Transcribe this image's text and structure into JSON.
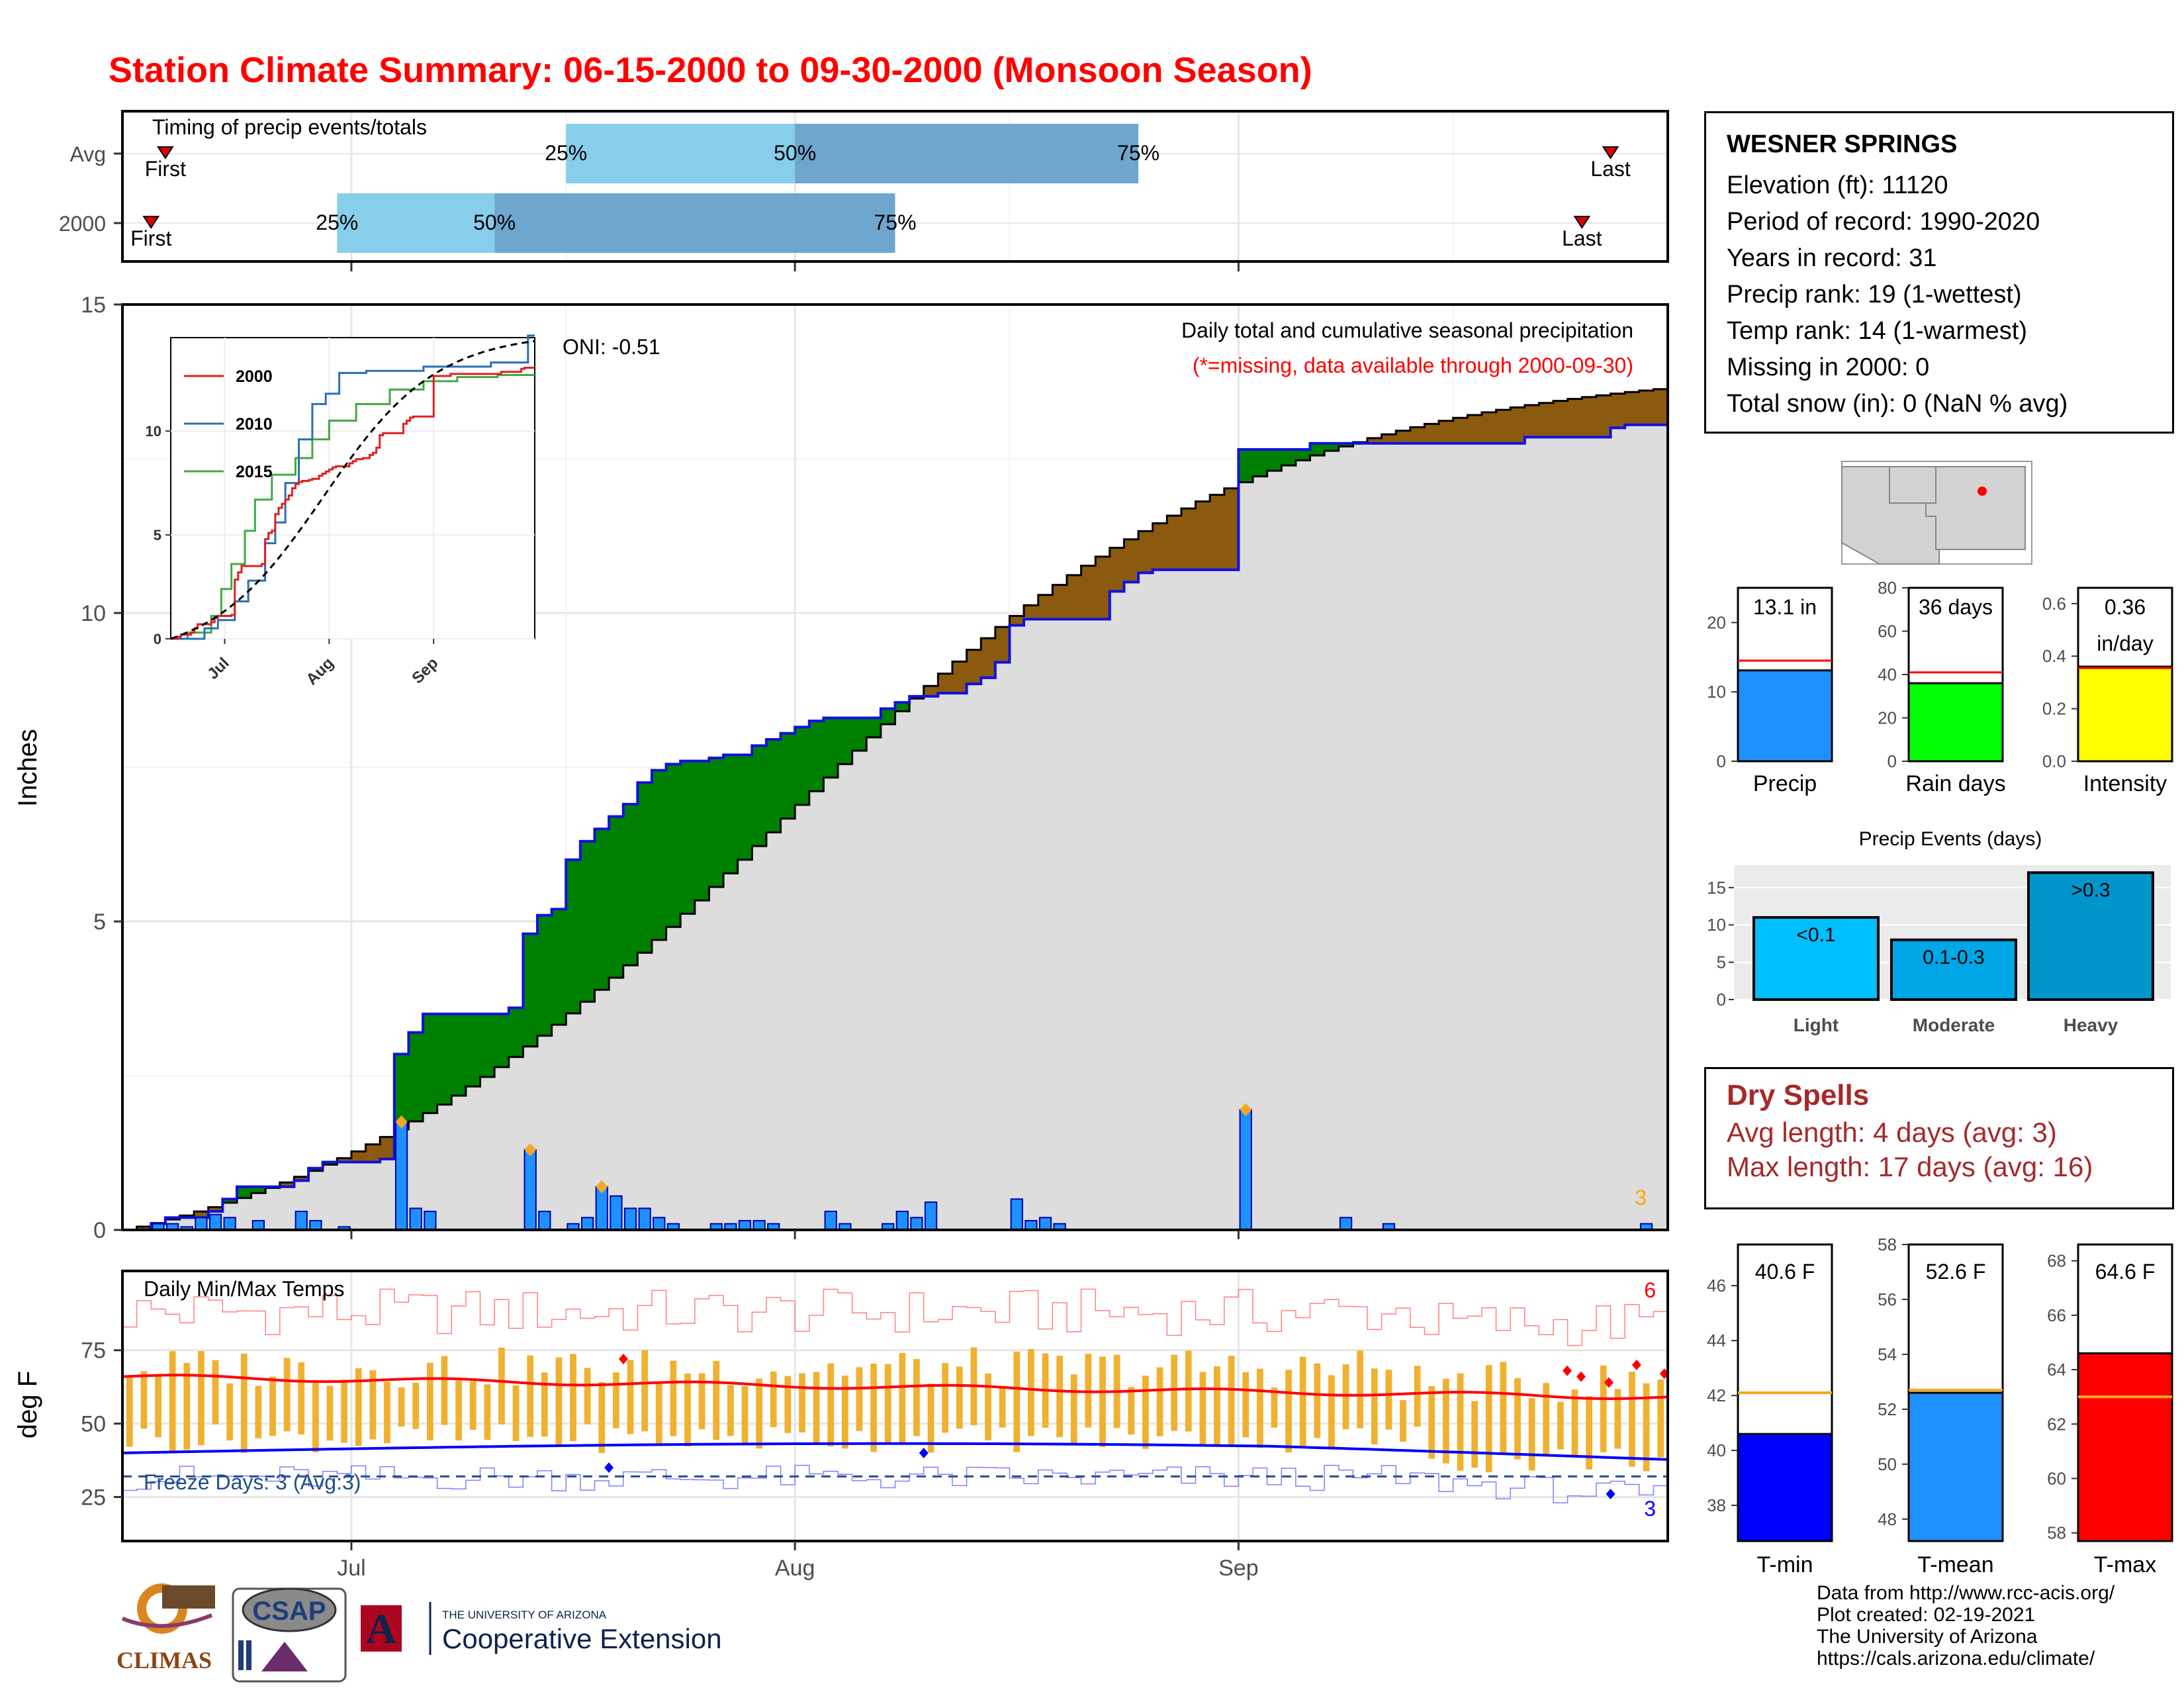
{
  "title": "Station Climate Summary: 06-15-2000 to 09-30-2000 (Monsoon Season)",
  "colors": {
    "title": "#ff0000",
    "excess_precip": "#008000",
    "normal_precip": "#dddddd",
    "daily_bar": "#1e90ff",
    "pct_light": "#87ceeb",
    "pct_dark": "#6ea6cd",
    "tmax": "#ff0000",
    "tmin": "#0000ff",
    "daily_range": "#f0b030",
    "dry_spells": "#a52a2a",
    "intensity": "#ffff00",
    "rain_days": "#00ff00"
  },
  "timing_panel": {
    "label": "Timing of precip events/totals",
    "rows": [
      {
        "name": "Avg",
        "first_date": "2000-06-18",
        "last_date": "2000-09-27",
        "p25": "2000-07-16",
        "p50": "2000-08-01",
        "p75": "2000-08-25",
        "first_label": "First",
        "last_label": "Last"
      },
      {
        "name": "2000",
        "first_date": "2000-06-17",
        "last_date": "2000-09-25",
        "p25": "2000-06-30",
        "p50": "2000-07-11",
        "p75": "2000-08-08",
        "first_label": "First",
        "last_label": "Last"
      }
    ],
    "pct_labels": [
      "25%",
      "50%",
      "75%"
    ]
  },
  "precip_panel": {
    "ylabel": "Inches",
    "ylim": [
      0,
      15
    ],
    "yticks": [
      "0",
      "5",
      "10",
      "15"
    ],
    "caption": "Daily total and cumulative seasonal precipitation",
    "caption2": "(*=missing, data available through 2000-09-30)",
    "oni": "ONI: -0.51",
    "count_label": "3"
  },
  "inset": {
    "yticks": [
      "0",
      "5",
      "10"
    ],
    "xticks": [
      "Jul",
      "Aug",
      "Sep"
    ],
    "legend": [
      "2000",
      "2010",
      "2015"
    ]
  },
  "temp_panel": {
    "ylabel": "deg F",
    "label": "Daily Min/Max Temps",
    "yticks": [
      "25",
      "50",
      "75"
    ],
    "freeze": "Freeze Days: 3 (Avg:3)",
    "hot_count": "6",
    "cold_count": "3",
    "freeze_line": 32
  },
  "x_axis": {
    "ticks": [
      "Jul",
      "Aug",
      "Sep"
    ]
  },
  "station": {
    "name": "WESNER SPRINGS",
    "lines": [
      "Elevation (ft): 11120",
      "Period of record: 1990-2020",
      "Years in record: 31",
      "Precip rank: 19 (1-wettest)",
      "Temp rank: 14 (1-warmest)",
      "Missing in 2000: 0",
      "Total snow (in): 0 (NaN % avg)"
    ]
  },
  "summary_bars": [
    {
      "label": "Precip",
      "value": 13.1,
      "avg": 14.5,
      "text": "13.1 in",
      "yticks": [
        "0",
        "10",
        "20"
      ],
      "ylim": [
        0,
        25
      ]
    },
    {
      "label": "Rain days",
      "value": 36,
      "avg": 41,
      "text": "36 days",
      "yticks": [
        "0",
        "20",
        "40",
        "60",
        "80"
      ],
      "ylim": [
        0,
        80
      ]
    },
    {
      "label": "Intensity",
      "value": 0.36,
      "avg": 0.355,
      "text": "0.36",
      "text2": "in/day",
      "yticks": [
        "0.0",
        "0.2",
        "0.4",
        "0.6"
      ],
      "ylim": [
        0,
        0.66
      ]
    }
  ],
  "events_chart": {
    "title": "Precip Events (days)",
    "categories": [
      "Light",
      "Moderate",
      "Heavy"
    ],
    "bar_labels": [
      "<0.1",
      "0.1-0.3",
      ">0.3"
    ],
    "values": [
      11,
      8,
      17
    ],
    "yticks": [
      "0",
      "5",
      "10",
      "15"
    ],
    "ylim": [
      0,
      18
    ]
  },
  "dry_spells": {
    "title": "Dry Spells",
    "avg": "Avg length: 4 days (avg: 3)",
    "max": "Max length: 17 days (avg: 16)"
  },
  "temp_bars": [
    {
      "label": "T-min",
      "value": 40.6,
      "avg": 42.1,
      "text": "40.6 F",
      "yticks": [
        "38",
        "40",
        "42",
        "44",
        "46"
      ],
      "ylim": [
        36.7,
        47.5
      ]
    },
    {
      "label": "T-mean",
      "value": 52.6,
      "avg": 52.7,
      "text": "52.6 F",
      "yticks": [
        "48",
        "50",
        "52",
        "54",
        "56",
        "58"
      ],
      "ylim": [
        47.2,
        58.0
      ]
    },
    {
      "label": "T-max",
      "value": 64.6,
      "avg": 63.0,
      "text": "64.6 F",
      "yticks": [
        "58",
        "60",
        "62",
        "64",
        "66",
        "68"
      ],
      "ylim": [
        57.7,
        68.6
      ]
    }
  ],
  "footer": [
    "Data from http://www.rcc-acis.org/",
    "Plot created: 02-19-2021",
    "The University of Arizona",
    "https://cals.arizona.edu/climate/"
  ],
  "logos": {
    "climas": "CLIMAS",
    "csap": "CSAP",
    "ua_small": "THE UNIVERSITY OF ARIZONA",
    "ua_big": "Cooperative Extension",
    "ua_letter": "A"
  },
  "chart_data": [
    {
      "type": "area",
      "title": "Daily total and cumulative seasonal precipitation",
      "ylabel": "Inches",
      "ylim": [
        0,
        15
      ],
      "start_date": "2000-06-15",
      "end_date": "2000-09-30",
      "cumulative_2000": [
        [
          "06-15",
          0
        ],
        [
          "06-17",
          0.1
        ],
        [
          "06-18",
          0.2
        ],
        [
          "06-21",
          0.3
        ],
        [
          "06-22",
          0.5
        ],
        [
          "06-23",
          0.7
        ],
        [
          "06-27",
          0.8
        ],
        [
          "06-28",
          1.0
        ],
        [
          "06-29",
          1.1
        ],
        [
          "07-03",
          1.15
        ],
        [
          "07-04",
          2.85
        ],
        [
          "07-05",
          3.2
        ],
        [
          "07-06",
          3.5
        ],
        [
          "07-12",
          3.6
        ],
        [
          "07-13",
          4.8
        ],
        [
          "07-14",
          5.1
        ],
        [
          "07-15",
          5.2
        ],
        [
          "07-16",
          6.0
        ],
        [
          "07-17",
          6.3
        ],
        [
          "07-18",
          6.5
        ],
        [
          "07-19",
          6.7
        ],
        [
          "07-20",
          6.9
        ],
        [
          "07-21",
          7.25
        ],
        [
          "07-22",
          7.45
        ],
        [
          "07-23",
          7.55
        ],
        [
          "07-24",
          7.6
        ],
        [
          "07-26",
          7.65
        ],
        [
          "07-27",
          7.7
        ],
        [
          "07-29",
          7.85
        ],
        [
          "07-30",
          7.95
        ],
        [
          "07-31",
          8.05
        ],
        [
          "08-01",
          8.15
        ],
        [
          "08-02",
          8.25
        ],
        [
          "08-03",
          8.3
        ],
        [
          "08-07",
          8.45
        ],
        [
          "08-08",
          8.55
        ],
        [
          "08-09",
          8.65
        ],
        [
          "08-11",
          8.7
        ],
        [
          "08-13",
          8.85
        ],
        [
          "08-14",
          8.95
        ],
        [
          "08-15",
          9.2
        ],
        [
          "08-16",
          9.8
        ],
        [
          "08-17",
          9.9
        ],
        [
          "08-23",
          10.35
        ],
        [
          "08-24",
          10.5
        ],
        [
          "08-25",
          10.65
        ],
        [
          "08-26",
          10.7
        ],
        [
          "08-31",
          10.7
        ],
        [
          "09-01",
          12.65
        ],
        [
          "09-06",
          12.75
        ],
        [
          "09-11",
          12.75
        ],
        [
          "09-17",
          12.75
        ],
        [
          "09-21",
          12.85
        ],
        [
          "09-27",
          13.0
        ],
        [
          "09-28",
          13.05
        ],
        [
          "09-30",
          13.05
        ]
      ],
      "cumulative_avg_end": 13.65,
      "daily_2000": [
        [
          "06-17",
          0.1
        ],
        [
          "06-18",
          0.1
        ],
        [
          "06-19",
          0.05
        ],
        [
          "06-20",
          0.2
        ],
        [
          "06-21",
          0.25
        ],
        [
          "06-22",
          0.2
        ],
        [
          "06-24",
          0.15
        ],
        [
          "06-27",
          0.3
        ],
        [
          "06-28",
          0.15
        ],
        [
          "06-30",
          0.05
        ],
        [
          "07-04",
          1.75
        ],
        [
          "07-05",
          0.35
        ],
        [
          "07-06",
          0.3
        ],
        [
          "07-13",
          1.3
        ],
        [
          "07-14",
          0.3
        ],
        [
          "07-16",
          0.1
        ],
        [
          "07-17",
          0.2
        ],
        [
          "07-18",
          0.7
        ],
        [
          "07-19",
          0.55
        ],
        [
          "07-20",
          0.35
        ],
        [
          "07-21",
          0.35
        ],
        [
          "07-22",
          0.2
        ],
        [
          "07-23",
          0.1
        ],
        [
          "07-26",
          0.1
        ],
        [
          "07-27",
          0.1
        ],
        [
          "07-28",
          0.15
        ],
        [
          "07-29",
          0.15
        ],
        [
          "07-30",
          0.1
        ],
        [
          "08-03",
          0.3
        ],
        [
          "08-04",
          0.1
        ],
        [
          "08-07",
          0.1
        ],
        [
          "08-08",
          0.3
        ],
        [
          "08-09",
          0.2
        ],
        [
          "08-10",
          0.45
        ],
        [
          "08-16",
          0.5
        ],
        [
          "08-17",
          0.15
        ],
        [
          "08-18",
          0.2
        ],
        [
          "08-19",
          0.1
        ],
        [
          "09-01",
          1.95
        ],
        [
          "09-11",
          0.1
        ],
        [
          "09-29",
          0.1
        ],
        [
          "09-08",
          0.2
        ]
      ],
      "series": [
        {
          "name": "2000"
        },
        {
          "name": "2010"
        },
        {
          "name": "2015"
        }
      ]
    },
    {
      "type": "bar",
      "title": "Precip Events (days)",
      "categories": [
        "Light",
        "Moderate",
        "Heavy"
      ],
      "values": [
        11,
        8,
        17
      ]
    }
  ]
}
